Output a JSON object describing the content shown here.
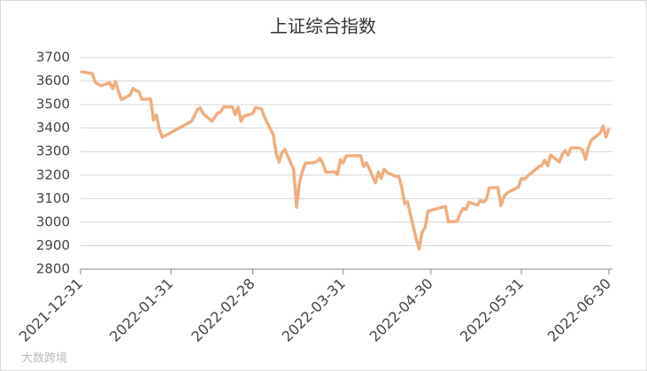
{
  "chart_data": {
    "type": "line",
    "title": "上证综合指数",
    "color": "#f0ae80",
    "grid": true,
    "x": [
      "2021-12-31",
      "2022-01-04",
      "2022-01-05",
      "2022-01-07",
      "2022-01-10",
      "2022-01-11",
      "2022-01-12",
      "2022-01-13",
      "2022-01-14",
      "2022-01-17",
      "2022-01-18",
      "2022-01-19",
      "2022-01-20",
      "2022-01-21",
      "2022-01-24",
      "2022-01-25",
      "2022-01-26",
      "2022-01-27",
      "2022-01-28",
      "2022-02-07",
      "2022-02-08",
      "2022-02-09",
      "2022-02-10",
      "2022-02-11",
      "2022-02-14",
      "2022-02-15",
      "2022-02-16",
      "2022-02-17",
      "2022-02-18",
      "2022-02-21",
      "2022-02-22",
      "2022-02-23",
      "2022-02-24",
      "2022-02-25",
      "2022-02-28",
      "2022-03-01",
      "2022-03-02",
      "2022-03-03",
      "2022-03-04",
      "2022-03-07",
      "2022-03-08",
      "2022-03-09",
      "2022-03-10",
      "2022-03-11",
      "2022-03-14",
      "2022-03-15",
      "2022-03-16",
      "2022-03-17",
      "2022-03-18",
      "2022-03-21",
      "2022-03-22",
      "2022-03-23",
      "2022-03-24",
      "2022-03-25",
      "2022-03-28",
      "2022-03-29",
      "2022-03-30",
      "2022-03-31",
      "2022-04-01",
      "2022-04-06",
      "2022-04-07",
      "2022-04-08",
      "2022-04-11",
      "2022-04-12",
      "2022-04-13",
      "2022-04-14",
      "2022-04-15",
      "2022-04-18",
      "2022-04-19",
      "2022-04-20",
      "2022-04-21",
      "2022-04-22",
      "2022-04-25",
      "2022-04-26",
      "2022-04-27",
      "2022-04-28",
      "2022-04-29",
      "2022-05-05",
      "2022-05-06",
      "2022-05-09",
      "2022-05-10",
      "2022-05-11",
      "2022-05-12",
      "2022-05-13",
      "2022-05-16",
      "2022-05-17",
      "2022-05-18",
      "2022-05-19",
      "2022-05-20",
      "2022-05-23",
      "2022-05-24",
      "2022-05-25",
      "2022-05-26",
      "2022-05-27",
      "2022-05-30",
      "2022-05-31",
      "2022-06-01",
      "2022-06-02",
      "2022-06-06",
      "2022-06-07",
      "2022-06-08",
      "2022-06-09",
      "2022-06-10",
      "2022-06-13",
      "2022-06-14",
      "2022-06-15",
      "2022-06-16",
      "2022-06-17",
      "2022-06-20",
      "2022-06-21",
      "2022-06-22",
      "2022-06-23",
      "2022-06-24",
      "2022-06-27",
      "2022-06-28",
      "2022-06-29",
      "2022-06-30"
    ],
    "values": [
      3640,
      3632,
      3595,
      3580,
      3593,
      3568,
      3598,
      3555,
      3521,
      3541,
      3569,
      3559,
      3555,
      3522,
      3524,
      3434,
      3455,
      3394,
      3361,
      3429,
      3452,
      3479,
      3486,
      3462,
      3429,
      3446,
      3465,
      3468,
      3490,
      3490,
      3457,
      3489,
      3429,
      3451,
      3462,
      3488,
      3484,
      3481,
      3447,
      3372,
      3293,
      3256,
      3296,
      3309,
      3223,
      3063,
      3170,
      3215,
      3251,
      3253,
      3259,
      3271,
      3250,
      3212,
      3214,
      3203,
      3266,
      3252,
      3282,
      3283,
      3236,
      3252,
      3167,
      3213,
      3186,
      3225,
      3211,
      3195,
      3195,
      3151,
      3079,
      3087,
      2928,
      2886,
      2958,
      2975,
      3047,
      3067,
      3001,
      3004,
      3035,
      3058,
      3054,
      3084,
      3073,
      3093,
      3085,
      3096,
      3146,
      3147,
      3070,
      3107,
      3123,
      3130,
      3149,
      3186,
      3182,
      3195,
      3236,
      3241,
      3263,
      3239,
      3285,
      3256,
      3288,
      3305,
      3285,
      3316,
      3315,
      3306,
      3267,
      3320,
      3349,
      3379,
      3409,
      3362,
      3398
    ],
    "xlim": [
      "2021-12-31",
      "2022-06-30"
    ],
    "xticks": [
      "2021-12-31",
      "2022-01-31",
      "2022-02-28",
      "2022-03-31",
      "2022-04-30",
      "2022-05-31",
      "2022-06-30"
    ],
    "ylim": [
      2800,
      3700
    ],
    "yticks": [
      2800,
      2900,
      3000,
      3100,
      3200,
      3300,
      3400,
      3500,
      3600,
      3700
    ]
  },
  "watermark": "大数跨境"
}
